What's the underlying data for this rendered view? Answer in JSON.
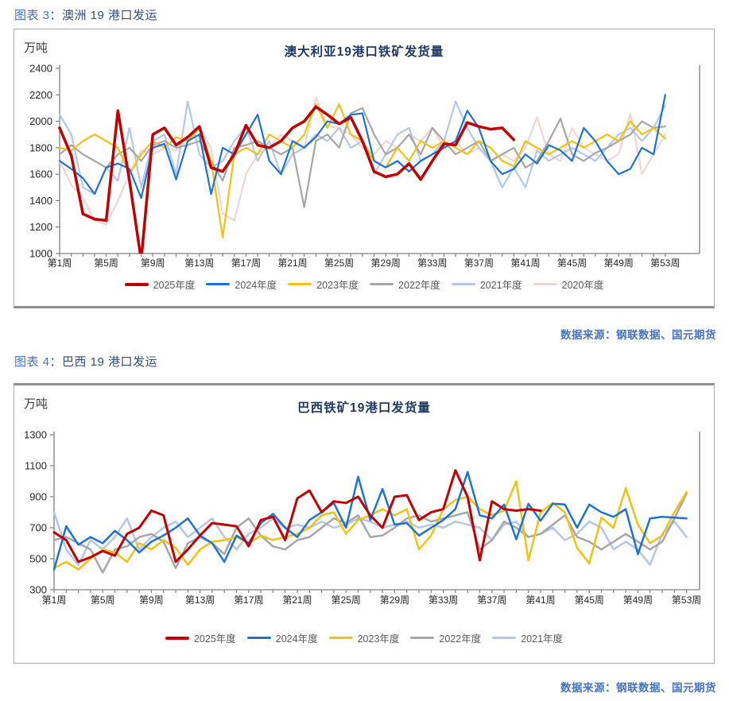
{
  "figure3": {
    "caption_label": "图表 3",
    "caption_title": "：澳洲 19 港口发运",
    "source_label": "数据来源：",
    "source_value": "钢联数据、国元期货"
  },
  "figure4": {
    "caption_label": "图表 4",
    "caption_title": "：巴西 19 港口发运",
    "source_label": "数据来源：",
    "source_value": "钢联数据、国元期货"
  },
  "colors": {
    "caption_blue": "#4472C4",
    "title_navy": "#1F3864",
    "axis_gray": "#808080",
    "legend_text": "#595959"
  },
  "chart_data": [
    {
      "type": "line",
      "title": "澳大利亚19港口铁矿发货量",
      "ylabel": "万吨",
      "ylim": [
        1000,
        2400
      ],
      "ytick_step": 200,
      "x_range": [
        1,
        53
      ],
      "x_tick_labels": [
        "第1周",
        "第5周",
        "第9周",
        "第13周",
        "第17周",
        "第21周",
        "第25周",
        "第29周",
        "第33周",
        "第37周",
        "第41周",
        "第45周",
        "第49周",
        "第53周"
      ],
      "grid": false,
      "legend_position": "bottom",
      "series": [
        {
          "name": "2025年度",
          "color": "#C00000",
          "line_width": 3.5,
          "values": [
            1950,
            1740,
            1300,
            1260,
            1250,
            2080,
            1550,
            950,
            1900,
            1950,
            1820,
            1880,
            1960,
            1650,
            1620,
            1750,
            1970,
            1820,
            1800,
            1850,
            1950,
            2000,
            2110,
            2050,
            1980,
            2030,
            1850,
            1620,
            1580,
            1600,
            1680,
            1560,
            1700,
            1830,
            1820,
            1990,
            1960,
            1940,
            1950,
            1860,
            null,
            null,
            null,
            null,
            null,
            null,
            null,
            null,
            null,
            null,
            null,
            null,
            null
          ]
        },
        {
          "name": "2024年度",
          "color": "#1E73D2",
          "line_width": 2.2,
          "values": [
            1700,
            1640,
            1570,
            1450,
            1650,
            1680,
            1640,
            1420,
            1800,
            1830,
            1560,
            1850,
            1900,
            1450,
            1800,
            1750,
            1900,
            2050,
            1700,
            1600,
            1850,
            1800,
            1880,
            2000,
            1980,
            2050,
            2060,
            1700,
            1650,
            1700,
            1620,
            1700,
            1750,
            1800,
            1850,
            2080,
            1950,
            1700,
            1600,
            1640,
            1750,
            1680,
            1820,
            1780,
            1700,
            1950,
            1850,
            1700,
            1600,
            1640,
            1800,
            1750,
            2200
          ]
        },
        {
          "name": "2023年度",
          "color": "#F2C114",
          "line_width": 2.2,
          "values": [
            1800,
            1780,
            1850,
            1900,
            1850,
            1800,
            1600,
            1750,
            1850,
            1800,
            1880,
            1850,
            1950,
            1700,
            1120,
            1750,
            1800,
            1750,
            1900,
            1850,
            1800,
            1900,
            2130,
            1950,
            2130,
            1900,
            1850,
            1700,
            1650,
            1800,
            1700,
            1850,
            1800,
            1850,
            1800,
            1750,
            1850,
            1800,
            1700,
            1660,
            1850,
            1800,
            1750,
            1800,
            1850,
            1800,
            1850,
            1900,
            1850,
            2000,
            1900,
            1950,
            1870
          ]
        },
        {
          "name": "2022年度",
          "color": "#A6A6A6",
          "line_width": 2.2,
          "values": [
            1750,
            1820,
            1750,
            1700,
            1650,
            1750,
            1800,
            1700,
            1820,
            1850,
            1800,
            1820,
            1850,
            1700,
            1550,
            1800,
            1820,
            1850,
            1800,
            1750,
            1800,
            1350,
            1850,
            1900,
            1800,
            2060,
            2100,
            1900,
            1750,
            1800,
            1900,
            1750,
            1950,
            1850,
            1750,
            1800,
            1850,
            1700,
            1750,
            1800,
            1650,
            1700,
            1850,
            2020,
            1750,
            1700,
            1760,
            1800,
            1850,
            1900,
            2000,
            1950,
            1960
          ]
        },
        {
          "name": "2021年度",
          "color": "#B4C7E7",
          "line_width": 2.2,
          "values": [
            2050,
            1900,
            1500,
            1450,
            1650,
            1550,
            1950,
            1500,
            1850,
            1900,
            1600,
            2150,
            1750,
            1650,
            1700,
            1850,
            1960,
            1700,
            1850,
            1600,
            1750,
            1800,
            1900,
            1850,
            1950,
            1800,
            1850,
            1600,
            1750,
            1900,
            1950,
            1700,
            1750,
            1850,
            2150,
            1950,
            1800,
            1700,
            1500,
            1650,
            1500,
            1780,
            1700,
            1750,
            1800,
            1750,
            1700,
            1800,
            1900,
            1950,
            1850,
            1950,
            2120
          ]
        },
        {
          "name": "2020年度",
          "color": "#EFD5D3",
          "line_width": 2.2,
          "values": [
            1700,
            1520,
            1420,
            1250,
            1220,
            1400,
            1600,
            1780,
            1750,
            1800,
            1780,
            1850,
            1950,
            1800,
            1300,
            1250,
            1600,
            1750,
            1800,
            1900,
            1850,
            1800,
            2180,
            1960,
            1950,
            1900,
            1800,
            1750,
            1850,
            1800,
            1900,
            1850,
            1950,
            1800,
            1850,
            1750,
            1800,
            1700,
            1750,
            1700,
            1800,
            2030,
            1750,
            1700,
            1950,
            1800,
            1750,
            1700,
            1750,
            2060,
            1600,
            1750,
            1900
          ]
        }
      ]
    },
    {
      "type": "line",
      "title": "巴西铁矿19港口发货量",
      "ylabel": "万吨",
      "ylim": [
        300,
        1300
      ],
      "ytick_step": 200,
      "x_range": [
        1,
        53
      ],
      "x_tick_labels": [
        "第1周",
        "第5周",
        "第9周",
        "第13周",
        "第17周",
        "第21周",
        "第25周",
        "第29周",
        "第33周",
        "第37周",
        "第41周",
        "第45周",
        "第49周",
        "第53周"
      ],
      "grid": false,
      "legend_position": "bottom",
      "series": [
        {
          "name": "2025年度",
          "color": "#C00000",
          "line_width": 3,
          "values": [
            670,
            620,
            480,
            510,
            550,
            520,
            660,
            700,
            810,
            780,
            480,
            560,
            650,
            730,
            720,
            710,
            580,
            750,
            770,
            620,
            890,
            940,
            800,
            870,
            860,
            900,
            780,
            700,
            900,
            910,
            750,
            800,
            820,
            1070,
            900,
            490,
            870,
            820,
            810,
            820,
            810,
            null,
            null,
            null,
            null,
            null,
            null,
            null,
            null,
            null,
            null,
            null,
            null
          ]
        },
        {
          "name": "2024年度",
          "color": "#1E73D2",
          "line_width": 2.5,
          "values": [
            430,
            710,
            590,
            640,
            600,
            680,
            620,
            540,
            610,
            650,
            700,
            760,
            650,
            600,
            480,
            650,
            600,
            730,
            790,
            700,
            640,
            750,
            800,
            860,
            700,
            1030,
            750,
            950,
            720,
            730,
            650,
            700,
            750,
            820,
            1060,
            780,
            760,
            850,
            625,
            855,
            745,
            855,
            850,
            700,
            850,
            800,
            770,
            820,
            530,
            760,
            770,
            765,
            760
          ]
        },
        {
          "name": "2023年度",
          "color": "#F2C114",
          "line_width": 2.5,
          "values": [
            440,
            480,
            430,
            500,
            560,
            540,
            480,
            600,
            560,
            620,
            570,
            460,
            560,
            610,
            620,
            640,
            600,
            650,
            620,
            640,
            660,
            700,
            780,
            800,
            660,
            750,
            780,
            820,
            780,
            820,
            560,
            650,
            820,
            880,
            900,
            820,
            780,
            810,
            1000,
            490,
            800,
            860,
            800,
            570,
            470,
            765,
            700,
            955,
            720,
            600,
            650,
            800,
            930
          ]
        },
        {
          "name": "2022年度",
          "color": "#A6A6A6",
          "line_width": 2.5,
          "values": [
            620,
            640,
            600,
            560,
            410,
            560,
            580,
            640,
            660,
            610,
            440,
            600,
            640,
            600,
            530,
            700,
            760,
            650,
            580,
            560,
            620,
            640,
            700,
            760,
            730,
            780,
            640,
            650,
            700,
            760,
            780,
            740,
            760,
            780,
            800,
            560,
            620,
            740,
            700,
            640,
            660,
            720,
            780,
            640,
            610,
            560,
            610,
            660,
            610,
            560,
            610,
            760,
            920
          ]
        },
        {
          "name": "2021年度",
          "color": "#B4C7E7",
          "line_width": 2.5,
          "values": [
            800,
            560,
            460,
            620,
            560,
            640,
            760,
            560,
            640,
            700,
            740,
            640,
            700,
            760,
            640,
            560,
            660,
            700,
            760,
            700,
            720,
            700,
            740,
            700,
            720,
            760,
            740,
            700,
            720,
            740,
            700,
            720,
            700,
            740,
            720,
            700,
            620,
            720,
            740,
            640,
            660,
            700,
            620,
            660,
            740,
            700,
            560,
            610,
            560,
            460,
            660,
            740,
            640
          ]
        }
      ]
    }
  ]
}
